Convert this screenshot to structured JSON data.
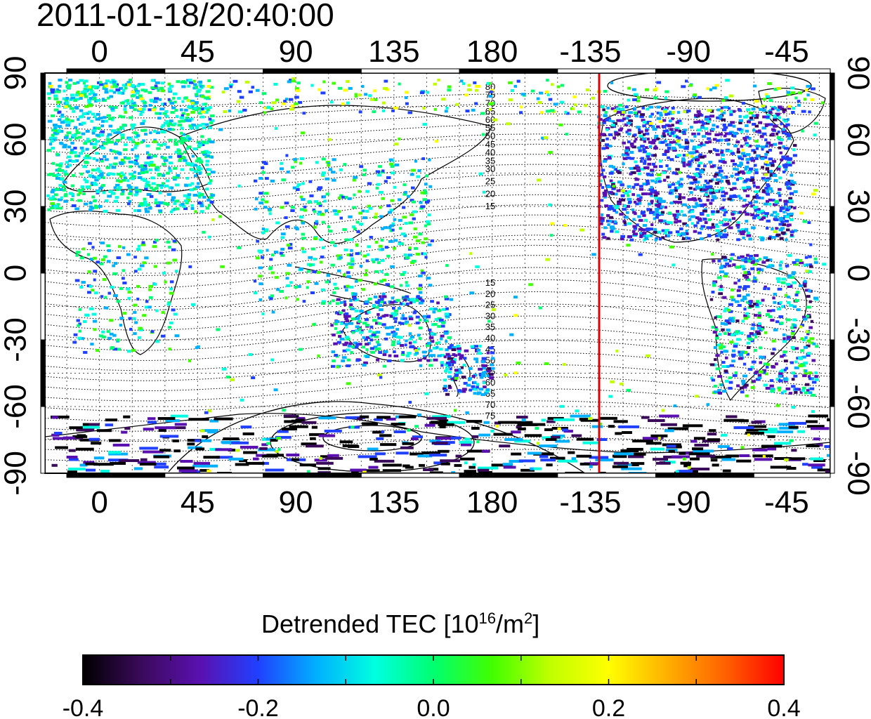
{
  "timestamp": "2011-01-18/20:40:00",
  "map": {
    "projection": "cylindrical",
    "lon_start": -25,
    "lon_span": 360,
    "lon_ticks": [
      {
        "lon": 0,
        "label": "0"
      },
      {
        "lon": 45,
        "label": "45"
      },
      {
        "lon": 90,
        "label": "90"
      },
      {
        "lon": 135,
        "label": "135"
      },
      {
        "lon": 180,
        "label": "180"
      },
      {
        "lon": 225,
        "label": "-135"
      },
      {
        "lon": 270,
        "label": "-90"
      },
      {
        "lon": 315,
        "label": "-45"
      }
    ],
    "lat_ticks": [
      {
        "lat": 90,
        "label": "90"
      },
      {
        "lat": 60,
        "label": "60"
      },
      {
        "lat": 30,
        "label": "30"
      },
      {
        "lat": 0,
        "label": "0"
      },
      {
        "lat": -30,
        "label": "-30"
      },
      {
        "lat": -60,
        "label": "-60"
      },
      {
        "lat": -90,
        "label": "-90"
      }
    ],
    "grid": "dotted, 15 degree",
    "terminator_longitude_label": "-135",
    "terminator_color": "#e00000",
    "contour_labels_north": [
      "80",
      "75",
      "70",
      "65",
      "60",
      "55",
      "50",
      "45",
      "40",
      "35",
      "30",
      "25",
      "20",
      "15"
    ],
    "contour_labels_south": [
      "15",
      "20",
      "25",
      "30",
      "35",
      "40",
      "45",
      "50",
      "55",
      "60",
      "65",
      "70",
      "75"
    ]
  },
  "colorbar": {
    "title_text": "Detrended TEC  [10",
    "title_exp": "16",
    "title_unit": "/m",
    "title_unit_exp": "2",
    "title_end": "]",
    "min": -0.4,
    "max": 0.4,
    "tick_labels": [
      "-0.4",
      "-0.2",
      "0.0",
      "0.2",
      "0.4"
    ],
    "colors": [
      "#000000",
      "#3a0a5a",
      "#5a10b0",
      "#2040ff",
      "#00b0ff",
      "#00ffe0",
      "#00ff70",
      "#40ff00",
      "#c0ff00",
      "#ffff00",
      "#ffb000",
      "#ff6000",
      "#ff0000"
    ]
  }
}
